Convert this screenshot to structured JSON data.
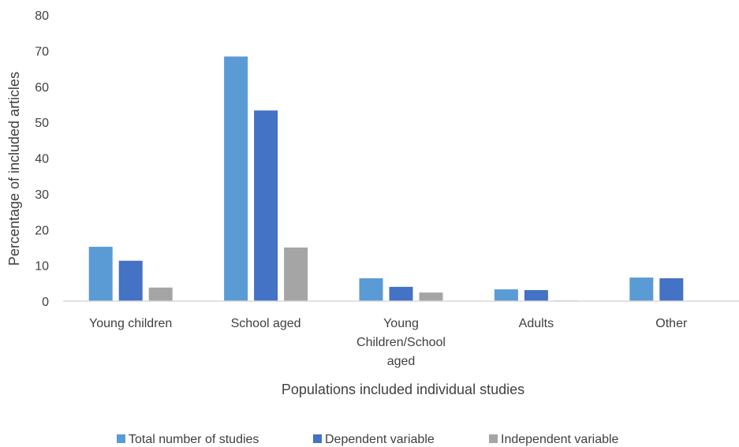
{
  "chart_data": {
    "type": "bar",
    "title": "",
    "xlabel": "Populations included individual studies",
    "ylabel": "Percentage of included articles",
    "ylim": [
      0,
      80
    ],
    "yticks": [
      "0",
      "10",
      "20",
      "30",
      "40",
      "50",
      "60",
      "70",
      "80"
    ],
    "categories": [
      [
        "Young children"
      ],
      [
        "School aged"
      ],
      [
        "Young",
        "Children/School",
        "aged"
      ],
      [
        "Adults"
      ],
      [
        "Other"
      ]
    ],
    "series": [
      {
        "name": "Total number of studies",
        "color": "#5B9BD5",
        "values": [
          15.2,
          68.4,
          6.4,
          3.3,
          6.6
        ]
      },
      {
        "name": "Dependent variable",
        "color": "#4472C4",
        "values": [
          11.3,
          53.3,
          4.0,
          3.1,
          6.4
        ]
      },
      {
        "name": "Independent variable",
        "color": "#A5A5A5",
        "values": [
          3.8,
          15.0,
          2.4,
          0.2,
          0
        ]
      }
    ],
    "grid": false,
    "legend_position": "bottom"
  }
}
